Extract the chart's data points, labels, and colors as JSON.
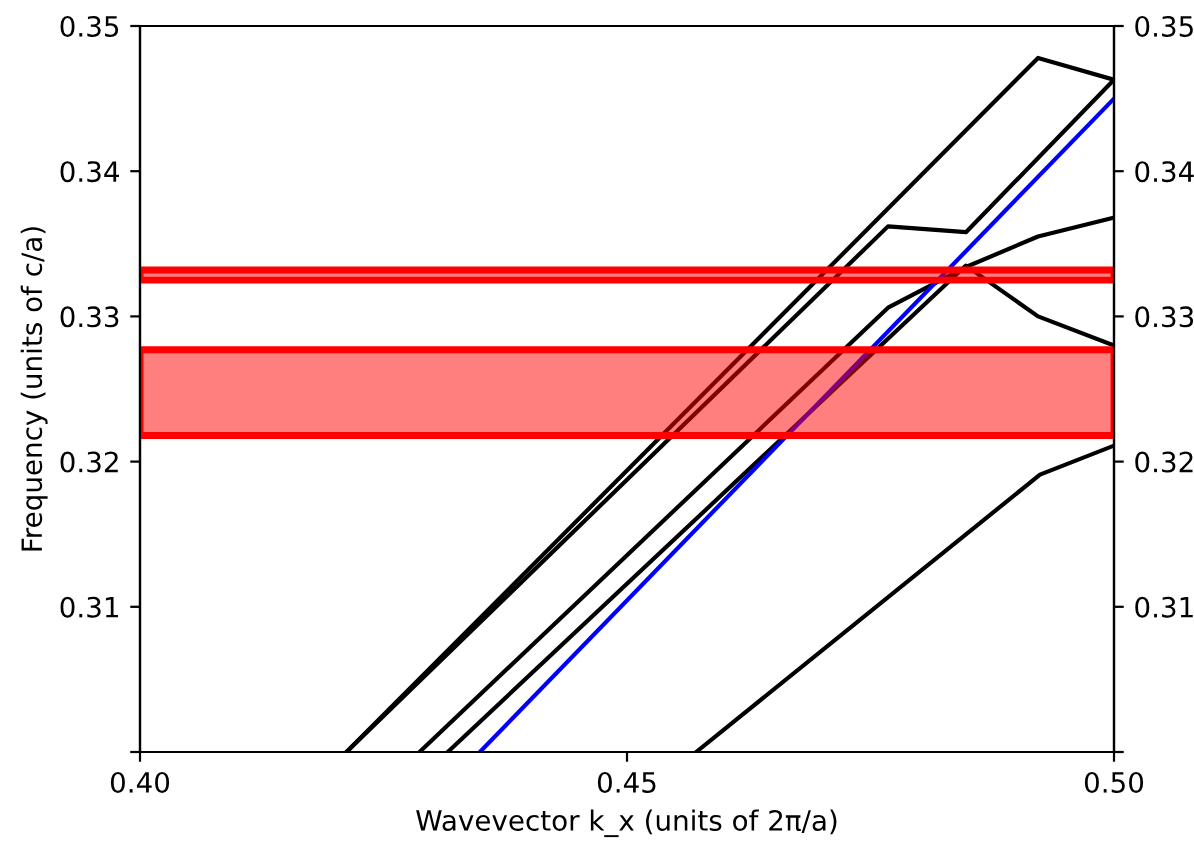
{
  "chart_data": {
    "type": "line",
    "xlabel": "Wavevector k_x (units of 2π/a)",
    "ylabel": "Frequency (units of c/a)",
    "xlim": [
      0.4,
      0.5
    ],
    "xticks": [
      {
        "value": 0.4,
        "label": "0.40"
      },
      0.45,
      {
        "value": 0.5,
        "label": "0.50"
      }
    ],
    "ylim": [
      0.3,
      0.35
    ],
    "yticks": [
      {
        "value": 0.3,
        "label": null
      },
      0.31,
      0.32,
      0.33,
      0.34,
      0.35
    ],
    "y2lim": [
      0.3,
      0.35
    ],
    "y2ticks": [
      {
        "value": 0.3,
        "label": null
      },
      0.31,
      0.32,
      0.33,
      0.34,
      0.35
    ],
    "grid": false,
    "legend": false,
    "series": [
      {
        "color": "#000000",
        "x": [
          0.4212,
          0.4922,
          0.5
        ],
        "values": [
          0.3,
          0.3478,
          0.3463
        ]
      },
      {
        "color": "#000000",
        "x": [
          0.4212,
          0.4768,
          0.4848,
          0.5
        ],
        "values": [
          0.3,
          0.3362,
          0.3358,
          0.3463
        ]
      },
      {
        "color": "#000000",
        "x": [
          0.4287,
          0.4768,
          0.4848,
          0.4922,
          0.5
        ],
        "values": [
          0.3,
          0.3306,
          0.3334,
          0.3355,
          0.3368
        ]
      },
      {
        "color": "#000000",
        "x": [
          0.4316,
          0.4848,
          0.4922,
          0.5
        ],
        "values": [
          0.3,
          0.3335,
          0.33,
          0.328
        ]
      },
      {
        "color": "#0000ff",
        "x": [
          0.4349,
          0.5
        ],
        "values": [
          0.3,
          0.345
        ]
      },
      {
        "color": "#000000",
        "x": [
          0.4571,
          0.4924,
          0.5
        ],
        "values": [
          0.3,
          0.3191,
          0.3211
        ]
      }
    ],
    "bands": [
      {
        "axis": "y",
        "from": 0.3325,
        "to": 0.3332,
        "color": "#ff0000"
      },
      {
        "axis": "y",
        "from": 0.3218,
        "to": 0.3277,
        "color": "#ff0000"
      }
    ]
  }
}
